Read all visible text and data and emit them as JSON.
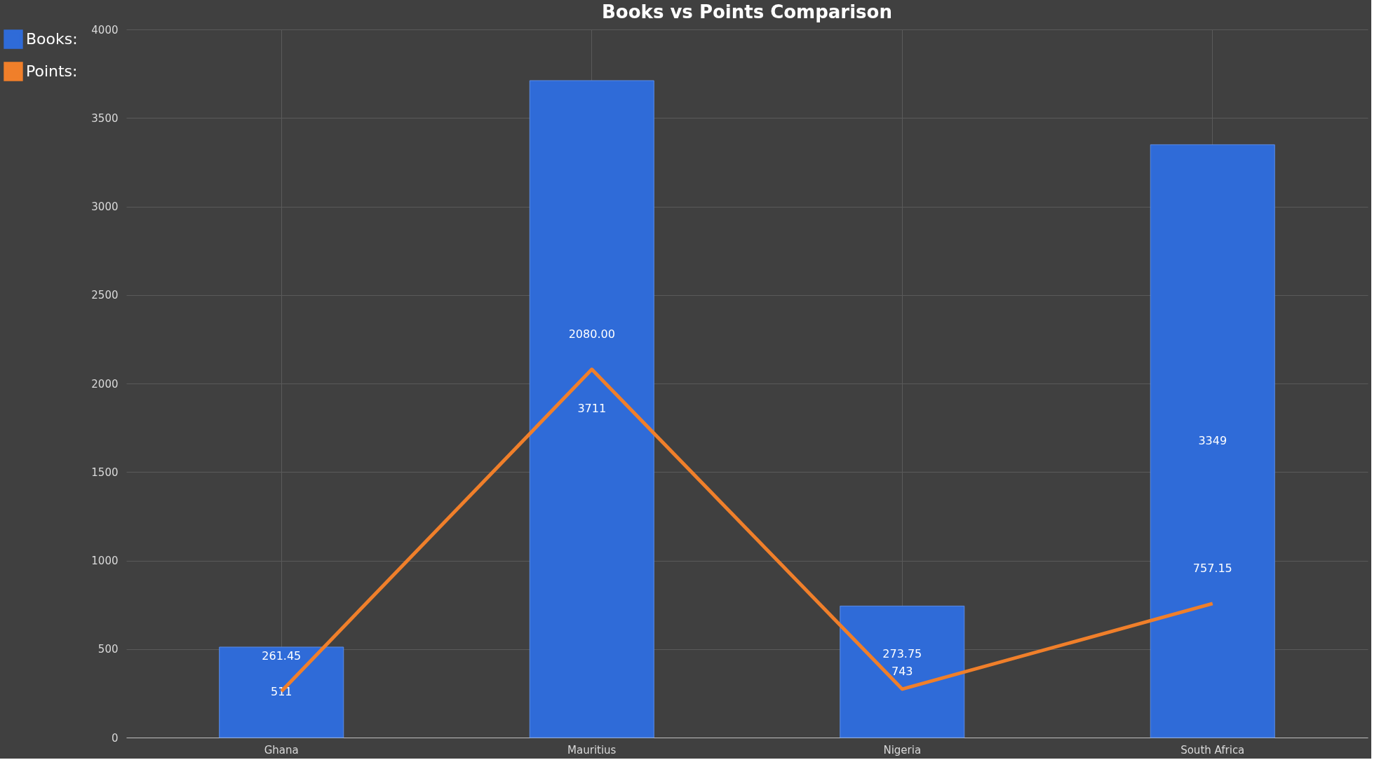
{
  "chart_data": {
    "type": "bar",
    "title": "Books vs Points Comparison",
    "categories": [
      "Ghana",
      "Mauritius",
      "Nigeria",
      "South Africa"
    ],
    "series": [
      {
        "name": "Books:",
        "color": "#2f6bd8",
        "values": [
          511,
          3711,
          743,
          3349
        ],
        "value_labels": [
          "511",
          "3711",
          "743",
          "3349"
        ]
      },
      {
        "name": "Points:",
        "type": "line",
        "color": "#f07f2a",
        "values": [
          261.45,
          2080.0,
          273.75,
          757.15
        ],
        "value_labels": [
          "261.45",
          "2080.00",
          "273.75",
          "757.15"
        ]
      }
    ],
    "ylim": [
      0,
      4000
    ],
    "yticks": [
      0,
      500,
      1000,
      1500,
      2000,
      2500,
      3000,
      3500,
      4000
    ],
    "grid": true,
    "legend": "left",
    "line_style": "solid",
    "marker": "none"
  }
}
